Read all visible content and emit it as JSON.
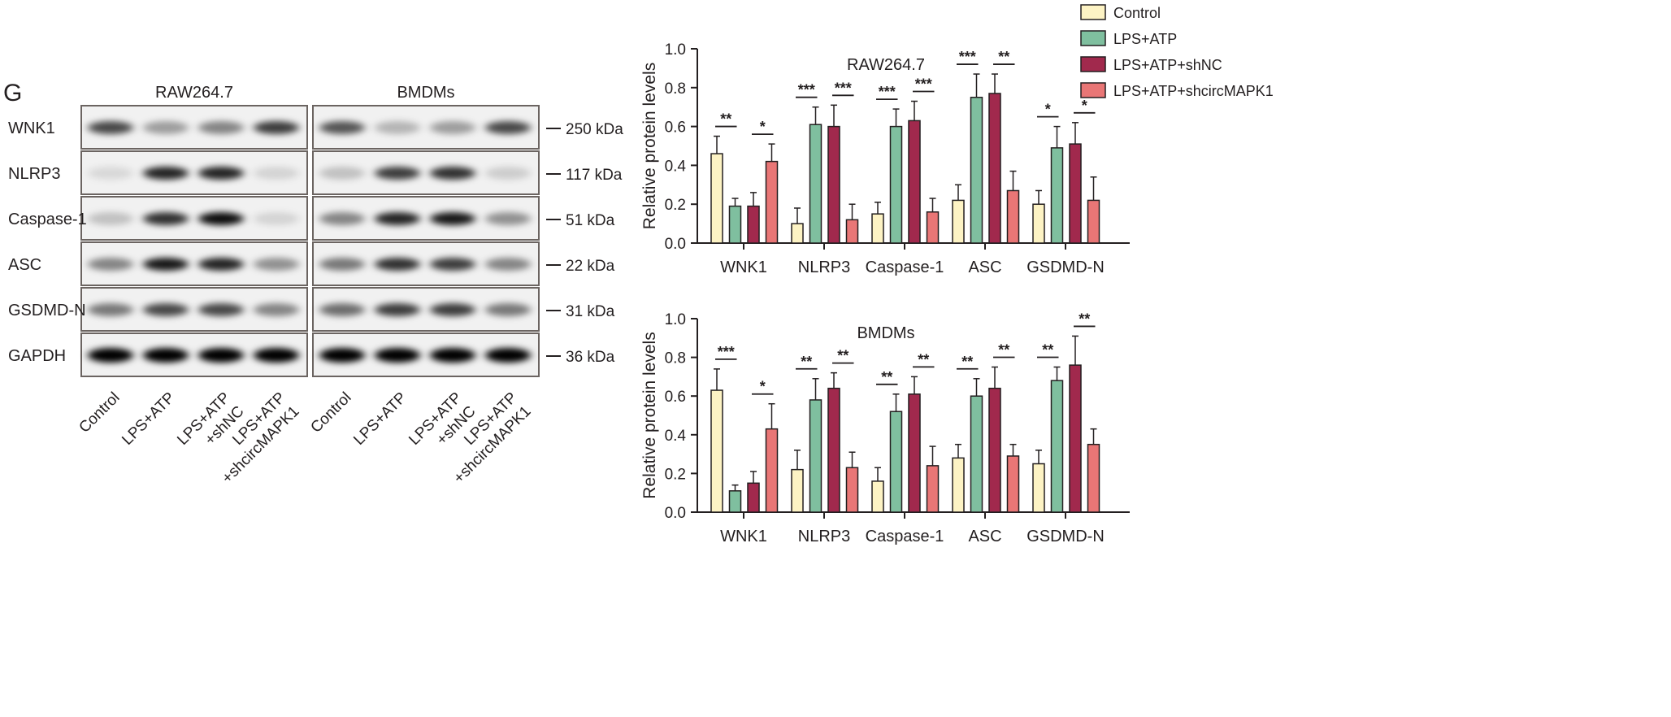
{
  "panel_label": "G",
  "blot": {
    "cell_lines": [
      "RAW264.7",
      "BMDMs"
    ],
    "proteins": [
      "WNK1",
      "NLRP3",
      "Caspase-1",
      "ASC",
      "GSDMD-N",
      "GAPDH"
    ],
    "markers": [
      "250 kDa",
      "117 kDa",
      "51 kDa",
      "22 kDa",
      "31 kDa",
      "36 kDa"
    ],
    "lanes": [
      [
        "Control"
      ],
      [
        "LPS+ATP"
      ],
      [
        "LPS+ATP",
        "+shNC"
      ],
      [
        "LPS+ATP",
        "+shcircMAPK1"
      ]
    ],
    "band_intensity": {
      "RAW264.7": [
        [
          0.7,
          0.35,
          0.45,
          0.75
        ],
        [
          0.1,
          0.85,
          0.85,
          0.12
        ],
        [
          0.2,
          0.8,
          0.95,
          0.12
        ],
        [
          0.45,
          0.9,
          0.85,
          0.4
        ],
        [
          0.5,
          0.7,
          0.7,
          0.45
        ],
        [
          1,
          1,
          1,
          1
        ]
      ],
      "BMDMs": [
        [
          0.65,
          0.25,
          0.35,
          0.7
        ],
        [
          0.2,
          0.75,
          0.8,
          0.15
        ],
        [
          0.45,
          0.85,
          0.9,
          0.4
        ],
        [
          0.5,
          0.8,
          0.75,
          0.45
        ],
        [
          0.55,
          0.75,
          0.75,
          0.5
        ],
        [
          1,
          1,
          1,
          1
        ]
      ]
    }
  },
  "legend": [
    {
      "label": "Control",
      "color": "#fdf3c4"
    },
    {
      "label": "LPS+ATP",
      "color": "#7fbf9f"
    },
    {
      "label": "LPS+ATP+shNC",
      "color": "#a1294d"
    },
    {
      "label": "LPS+ATP+shcircMAPK1",
      "color": "#e97676"
    }
  ],
  "chart_data": [
    {
      "type": "bar",
      "title": "RAW264.7",
      "ylabel": "Relative protein levels",
      "ylim": [
        0,
        1.0
      ],
      "yticks": [
        "0.0",
        "0.2",
        "0.4",
        "0.6",
        "0.8",
        "1.0"
      ],
      "categories": [
        "WNK1",
        "NLRP3",
        "Caspase-1",
        "ASC",
        "GSDMD-N"
      ],
      "series": [
        {
          "name": "Control",
          "values": [
            0.46,
            0.1,
            0.15,
            0.22,
            0.2
          ],
          "errors": [
            0.09,
            0.08,
            0.06,
            0.08,
            0.07
          ]
        },
        {
          "name": "LPS+ATP",
          "values": [
            0.19,
            0.61,
            0.6,
            0.75,
            0.49
          ],
          "errors": [
            0.04,
            0.09,
            0.09,
            0.12,
            0.11
          ]
        },
        {
          "name": "LPS+ATP+shNC",
          "values": [
            0.19,
            0.6,
            0.63,
            0.77,
            0.51
          ],
          "errors": [
            0.07,
            0.11,
            0.1,
            0.1,
            0.11
          ]
        },
        {
          "name": "LPS+ATP+shcircMAPK1",
          "values": [
            0.42,
            0.12,
            0.16,
            0.27,
            0.22
          ],
          "errors": [
            0.09,
            0.08,
            0.07,
            0.1,
            0.12
          ]
        }
      ],
      "significance": [
        [
          "**",
          "*"
        ],
        [
          "***",
          "***"
        ],
        [
          "***",
          "***"
        ],
        [
          "***",
          "**"
        ],
        [
          "*",
          "*"
        ]
      ]
    },
    {
      "type": "bar",
      "title": "BMDMs",
      "ylabel": "Relative protein levels",
      "ylim": [
        0,
        1.0
      ],
      "yticks": [
        "0.0",
        "0.2",
        "0.4",
        "0.6",
        "0.8",
        "1.0"
      ],
      "categories": [
        "WNK1",
        "NLRP3",
        "Caspase-1",
        "ASC",
        "GSDMD-N"
      ],
      "series": [
        {
          "name": "Control",
          "values": [
            0.63,
            0.22,
            0.16,
            0.28,
            0.25
          ],
          "errors": [
            0.11,
            0.1,
            0.07,
            0.07,
            0.07
          ]
        },
        {
          "name": "LPS+ATP",
          "values": [
            0.11,
            0.58,
            0.52,
            0.6,
            0.68
          ],
          "errors": [
            0.03,
            0.11,
            0.09,
            0.09,
            0.07
          ]
        },
        {
          "name": "LPS+ATP+shNC",
          "values": [
            0.15,
            0.64,
            0.61,
            0.64,
            0.76
          ],
          "errors": [
            0.06,
            0.08,
            0.09,
            0.11,
            0.15
          ]
        },
        {
          "name": "LPS+ATP+shcircMAPK1",
          "values": [
            0.43,
            0.23,
            0.24,
            0.29,
            0.35
          ],
          "errors": [
            0.13,
            0.08,
            0.1,
            0.06,
            0.08
          ]
        }
      ],
      "significance": [
        [
          "***",
          "*"
        ],
        [
          "**",
          "**"
        ],
        [
          "**",
          "**"
        ],
        [
          "**",
          "**"
        ],
        [
          "**",
          "**"
        ]
      ]
    }
  ]
}
